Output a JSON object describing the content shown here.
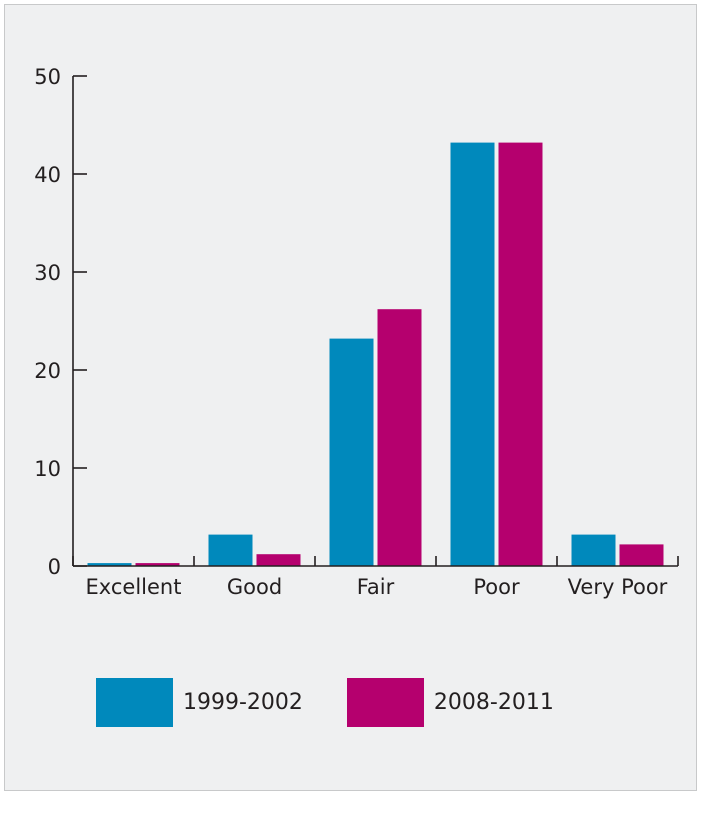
{
  "chart_data": {
    "type": "bar",
    "categories": [
      "Excellent",
      "Good",
      "Fair",
      "Poor",
      "Very Poor"
    ],
    "series": [
      {
        "name": "1999-2002",
        "color": "#0089bc",
        "values": [
          0.3,
          3.2,
          23.2,
          43.2,
          3.2
        ]
      },
      {
        "name": "2008-2011",
        "color": "#b5006e",
        "values": [
          0.3,
          1.2,
          26.2,
          43.2,
          2.2
        ]
      }
    ],
    "y_ticks": [
      "0",
      "10",
      "20",
      "30",
      "40",
      "50"
    ],
    "ylim": [
      0,
      50
    ],
    "legend_position": "bottom-left",
    "grid": false,
    "title": "",
    "xlabel": "",
    "ylabel": ""
  }
}
